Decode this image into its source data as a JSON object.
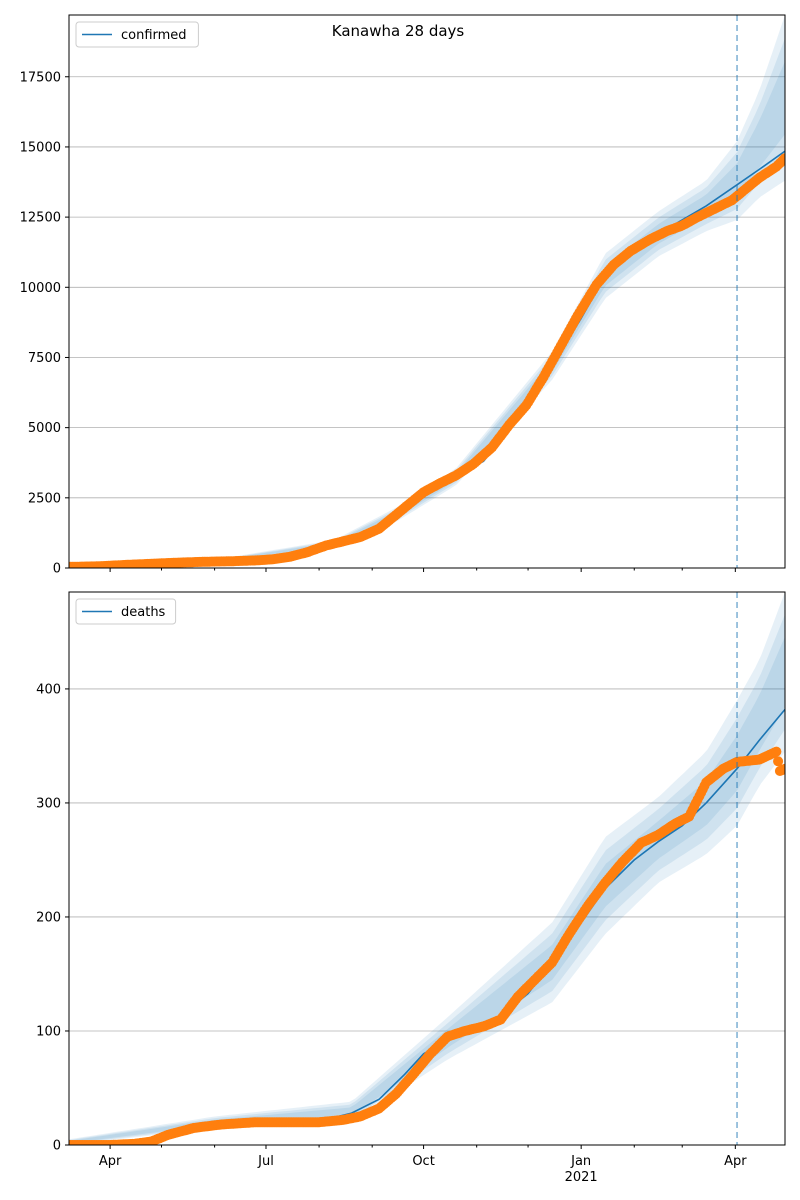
{
  "chart_data": [
    {
      "type": "line",
      "title": "Kanawha 28 days",
      "xlabel": "",
      "ylabel": "",
      "x_range": [
        "2020-03-08",
        "2021-04-30"
      ],
      "ylim": [
        0,
        19700
      ],
      "yticks": [
        0,
        2500,
        5000,
        7500,
        10000,
        12500,
        15000,
        17500
      ],
      "ytick_labels": [
        "0",
        "2500",
        "5000",
        "7500",
        "10000",
        "12500",
        "15000",
        "17500"
      ],
      "grid": "horizontal",
      "legend_position": "top-left",
      "forecast_start": "2021-04-02",
      "series": [
        {
          "name": "confirmed",
          "style": "line",
          "x": [
            "2020-03-08",
            "2020-04-01",
            "2020-05-01",
            "2020-06-01",
            "2020-07-01",
            "2020-07-20",
            "2020-08-10",
            "2020-09-01",
            "2020-09-15",
            "2020-10-01",
            "2020-10-20",
            "2020-11-05",
            "2020-11-20",
            "2020-12-01",
            "2020-12-15",
            "2021-01-01",
            "2021-01-15",
            "2021-02-01",
            "2021-02-15",
            "2021-03-01",
            "2021-03-15",
            "2021-04-02",
            "2021-04-15",
            "2021-04-30"
          ],
          "y": [
            40,
            90,
            160,
            230,
            300,
            480,
            850,
            1300,
            1900,
            2700,
            3250,
            3800,
            4900,
            5800,
            7200,
            8900,
            10400,
            11300,
            11900,
            12400,
            12900,
            13650,
            14200,
            14850
          ]
        },
        {
          "name": "",
          "style": "band",
          "x": [
            "2020-03-08",
            "2020-06-01",
            "2020-08-10",
            "2020-09-15",
            "2020-10-20",
            "2020-12-15",
            "2021-01-15",
            "2021-02-15",
            "2021-03-15",
            "2021-04-02",
            "2021-04-15",
            "2021-04-30"
          ],
          "lower": [
            30,
            190,
            700,
            1650,
            2950,
            6700,
            9600,
            11100,
            12000,
            12400,
            13200,
            13800
          ],
          "upper": [
            60,
            290,
            1000,
            2150,
            3550,
            7700,
            11200,
            12700,
            13800,
            15200,
            17000,
            19700
          ]
        },
        {
          "name": "",
          "style": "points",
          "x": [
            "2020-03-08",
            "2020-03-25",
            "2020-04-10",
            "2020-04-25",
            "2020-05-10",
            "2020-05-25",
            "2020-06-10",
            "2020-06-25",
            "2020-07-05",
            "2020-07-15",
            "2020-07-25",
            "2020-08-05",
            "2020-08-15",
            "2020-08-25",
            "2020-09-05",
            "2020-09-15",
            "2020-09-25",
            "2020-10-01",
            "2020-10-10",
            "2020-10-20",
            "2020-10-30",
            "2020-11-10",
            "2020-11-20",
            "2020-11-30",
            "2020-12-10",
            "2020-12-20",
            "2020-12-30",
            "2021-01-10",
            "2021-01-20",
            "2021-01-30",
            "2021-02-10",
            "2021-02-20",
            "2021-03-01",
            "2021-03-10",
            "2021-03-20",
            "2021-03-30",
            "2021-04-05",
            "2021-04-15",
            "2021-04-25",
            "2021-04-30"
          ],
          "y": [
            40,
            60,
            110,
            150,
            190,
            220,
            240,
            270,
            310,
            400,
            560,
            800,
            950,
            1100,
            1400,
            1900,
            2400,
            2700,
            3000,
            3300,
            3700,
            4300,
            5100,
            5800,
            6800,
            7900,
            9000,
            10100,
            10800,
            11300,
            11700,
            12000,
            12200,
            12500,
            12800,
            13100,
            13400,
            13900,
            14300,
            14600
          ]
        }
      ]
    },
    {
      "type": "line",
      "title": "",
      "xlabel": "",
      "ylabel": "",
      "x_range": [
        "2020-03-08",
        "2021-04-30"
      ],
      "x_tick_labels": [
        "Apr",
        "Jul",
        "Oct",
        "Jan",
        "Apr"
      ],
      "x_year_label": "2021",
      "ylim": [
        0,
        485
      ],
      "yticks": [
        0,
        100,
        200,
        300,
        400
      ],
      "ytick_labels": [
        "0",
        "100",
        "200",
        "300",
        "400"
      ],
      "grid": "horizontal",
      "legend_position": "top-left",
      "forecast_start": "2021-04-02",
      "series": [
        {
          "name": "deaths",
          "style": "line",
          "x": [
            "2020-03-08",
            "2020-04-01",
            "2020-04-25",
            "2020-05-15",
            "2020-06-01",
            "2020-07-01",
            "2020-08-01",
            "2020-08-20",
            "2020-09-05",
            "2020-09-20",
            "2020-10-01",
            "2020-10-15",
            "2020-11-01",
            "2020-11-15",
            "2020-12-01",
            "2020-12-15",
            "2021-01-01",
            "2021-01-15",
            "2021-02-01",
            "2021-02-15",
            "2021-03-01",
            "2021-03-15",
            "2021-04-02",
            "2021-04-15",
            "2021-04-30"
          ],
          "y": [
            0,
            0,
            5,
            15,
            19,
            20,
            21,
            28,
            40,
            62,
            80,
            92,
            103,
            113,
            133,
            160,
            195,
            225,
            250,
            266,
            280,
            300,
            330,
            355,
            382
          ]
        },
        {
          "name": "",
          "style": "band",
          "x": [
            "2020-03-08",
            "2020-06-01",
            "2020-08-20",
            "2020-10-15",
            "2020-12-15",
            "2021-01-15",
            "2021-02-15",
            "2021-03-15",
            "2021-04-02",
            "2021-04-15",
            "2021-04-30"
          ],
          "lower": [
            0,
            15,
            20,
            75,
            125,
            185,
            230,
            255,
            280,
            315,
            345
          ],
          "upper": [
            5,
            25,
            38,
            112,
            195,
            270,
            305,
            345,
            390,
            425,
            485
          ]
        },
        {
          "name": "",
          "style": "points",
          "x": [
            "2020-03-08",
            "2020-04-01",
            "2020-04-15",
            "2020-04-25",
            "2020-05-05",
            "2020-05-20",
            "2020-06-05",
            "2020-06-25",
            "2020-07-15",
            "2020-08-01",
            "2020-08-15",
            "2020-08-25",
            "2020-09-05",
            "2020-09-15",
            "2020-09-25",
            "2020-10-05",
            "2020-10-15",
            "2020-10-25",
            "2020-11-05",
            "2020-11-15",
            "2020-11-25",
            "2020-12-05",
            "2020-12-15",
            "2020-12-25",
            "2021-01-05",
            "2021-01-15",
            "2021-01-25",
            "2021-02-05",
            "2021-02-15",
            "2021-02-25",
            "2021-03-05",
            "2021-03-15",
            "2021-03-25",
            "2021-04-02",
            "2021-04-15",
            "2021-04-25",
            "2021-04-27",
            "2021-04-30"
          ],
          "y": [
            0,
            0,
            1,
            3,
            9,
            15,
            18,
            20,
            20,
            20,
            22,
            25,
            32,
            45,
            62,
            80,
            95,
            100,
            104,
            110,
            130,
            145,
            160,
            185,
            210,
            230,
            248,
            265,
            272,
            282,
            288,
            318,
            330,
            336,
            338,
            345,
            328,
            330
          ]
        }
      ]
    }
  ]
}
